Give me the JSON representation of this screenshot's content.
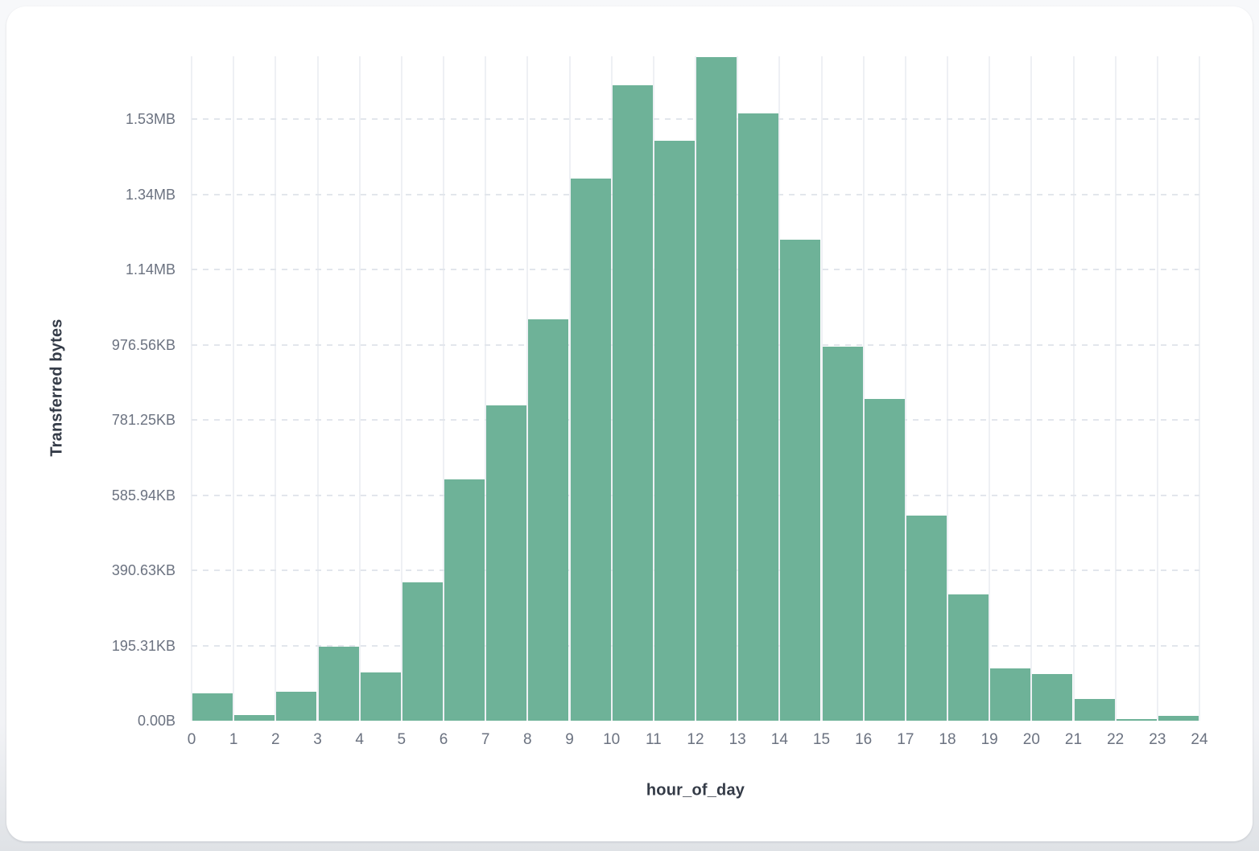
{
  "colors": {
    "bar_fill": "#6eb298",
    "vertical_grid": "#eef0f4",
    "horizontal_grid_dashed": "#e2e6ec",
    "tick_label_text": "#6b7280",
    "axis_title_text": "#343b47",
    "card_background": "#ffffff",
    "page_background": "#eff1f4"
  },
  "chart_data": {
    "type": "bar",
    "title": "",
    "xlabel": "hour_of_day",
    "ylabel": "Transferred bytes",
    "categories": [
      0,
      1,
      2,
      3,
      4,
      5,
      6,
      7,
      8,
      9,
      10,
      11,
      12,
      13,
      14,
      15,
      16,
      17,
      18,
      19,
      20,
      21,
      22,
      23
    ],
    "values_bytes": [
      73000,
      14300,
      78000,
      196000,
      128000,
      369000,
      642000,
      838000,
      1068000,
      1442000,
      1690000,
      1543000,
      1766000,
      1615000,
      1279000,
      995000,
      856000,
      545000,
      335000,
      139000,
      125000,
      58700,
      3600,
      12200
    ],
    "x_tick_labels": [
      "0",
      "1",
      "2",
      "3",
      "4",
      "5",
      "6",
      "7",
      "8",
      "9",
      "10",
      "11",
      "12",
      "13",
      "14",
      "15",
      "16",
      "17",
      "18",
      "19",
      "20",
      "21",
      "22",
      "23",
      "24"
    ],
    "y_ticks": [
      {
        "label": "0.00B",
        "bytes": 0
      },
      {
        "label": "195.31KB",
        "bytes": 200000
      },
      {
        "label": "390.63KB",
        "bytes": 400000
      },
      {
        "label": "585.94KB",
        "bytes": 600000
      },
      {
        "label": "781.25KB",
        "bytes": 800000
      },
      {
        "label": "976.56KB",
        "bytes": 1000000
      },
      {
        "label": "1.14MB",
        "bytes": 1200000
      },
      {
        "label": "1.34MB",
        "bytes": 1400000
      },
      {
        "label": "1.53MB",
        "bytes": 1600000
      }
    ],
    "ylim_bytes": [
      0,
      1768000
    ],
    "grid": {
      "horizontal": "dashed",
      "vertical": "solid"
    },
    "legend": false
  }
}
